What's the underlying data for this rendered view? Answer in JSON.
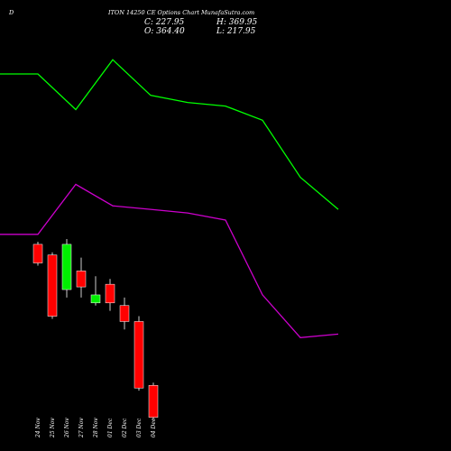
{
  "header": {
    "code": "D",
    "title": "ITON 14250 CE Options Chart MunafaSutra.com",
    "close_text": "C: 227.95",
    "high_text": "H: 369.95",
    "open_text": "O: 364.40",
    "low_text": "L: 217.95"
  },
  "colors": {
    "background": "#000000",
    "up": "#00ee00",
    "down": "#ff0000",
    "upper_line": "#00ff00",
    "lower_line": "#cc00cc",
    "text": "#ffffff"
  },
  "chart_data": {
    "type": "candlestick",
    "price_range": [
      200,
      380
    ],
    "categories": [
      "24 Nov",
      "25 Nov",
      "26 Nov",
      "27 Nov",
      "28 Nov",
      "01 Dec",
      "02 Dec",
      "03 Dec",
      "04 Dec"
    ],
    "candles": [
      {
        "date": "24 Nov",
        "open": 354,
        "high": 355,
        "low": 346,
        "close": 347
      },
      {
        "date": "25 Nov",
        "open": 350,
        "high": 351,
        "low": 326,
        "close": 327
      },
      {
        "date": "26 Nov",
        "open": 337,
        "high": 356,
        "low": 334,
        "close": 354
      },
      {
        "date": "27 Nov",
        "open": 344,
        "high": 349,
        "low": 334,
        "close": 338
      },
      {
        "date": "28 Nov",
        "open": 332,
        "high": 342,
        "low": 331,
        "close": 335
      },
      {
        "date": "01 Dec",
        "open": 339,
        "high": 341,
        "low": 329,
        "close": 332
      },
      {
        "date": "02 Dec",
        "open": 331,
        "high": 334,
        "low": 322,
        "close": 325
      },
      {
        "date": "03 Dec",
        "open": 325,
        "high": 327,
        "low": 299,
        "close": 300
      },
      {
        "date": "04 Dec",
        "open": 301,
        "high": 302,
        "low": 288,
        "close": 289
      }
    ],
    "upper_line": [
      480,
      480,
      470,
      484,
      474,
      472,
      471,
      467,
      451,
      442
    ],
    "lower_line": [
      435,
      435,
      449,
      443,
      442,
      441,
      439,
      418,
      406,
      407
    ],
    "line_x_positions": [
      "start",
      "24 Nov",
      "25 Nov",
      "27 Nov",
      "28 Nov",
      "01 Dec",
      "02 Dec",
      "03 Dec",
      "04 Dec",
      "end"
    ]
  }
}
